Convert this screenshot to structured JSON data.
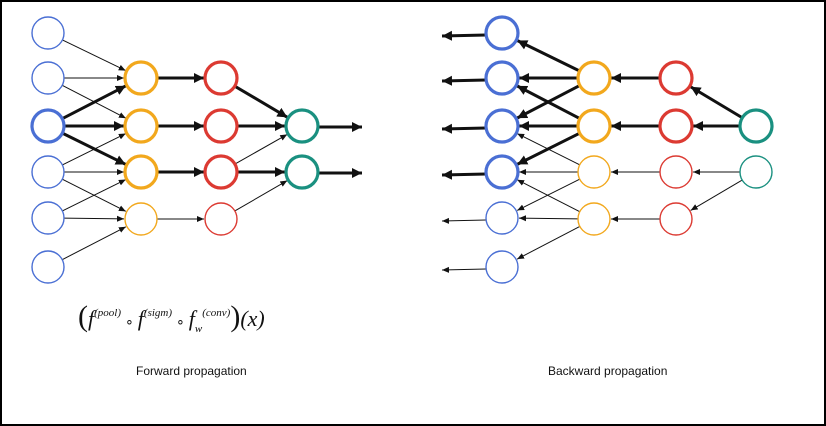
{
  "captions": {
    "forward": "Forward propagation",
    "backward": "Backward propagation"
  },
  "formula": {
    "f": "f",
    "pool": "(pool)",
    "sigm": "(sigm)",
    "conv": "(conv)",
    "w": "w",
    "compose": "∘",
    "x": "(x)"
  },
  "colors": {
    "input": "#4a6fd4",
    "conv": "#f2a81d",
    "sigm": "#dc3a32",
    "pool": "#1a9080",
    "edge": "#111111"
  }
}
